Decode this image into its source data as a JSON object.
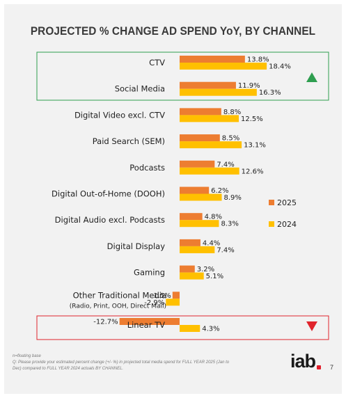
{
  "title": "PROJECTED % CHANGE AD SPEND YoY, BY CHANNEL",
  "footnote": {
    "line1": "n=floating base",
    "line2": "Q: Please provide your estimated percent change (+/- %) in projected total media spend for FULL YEAR 2025 (Jan to",
    "line3": "Dec) compared to FULL YEAR 2024 actuals BY CHANNEL."
  },
  "logo": "iab",
  "page_number": "7",
  "colors": {
    "series_2025": "#ed7d31",
    "series_2024": "#ffc000",
    "highlight_up": "#2e9e4f",
    "highlight_down": "#e0242c"
  },
  "highlights": {
    "up": {
      "icon": "up-triangle-icon",
      "categories": [
        "CTV",
        "Social Media"
      ]
    },
    "down": {
      "icon": "down-triangle-icon",
      "categories": [
        "Linear TV"
      ]
    }
  },
  "chart_data": {
    "type": "bar",
    "orientation": "horizontal",
    "title": "PROJECTED % CHANGE AD SPEND YoY, BY CHANNEL",
    "categories": [
      "CTV",
      "Social Media",
      "Digital Video excl. CTV",
      "Paid Search (SEM)",
      "Podcasts",
      "Digital Out-of-Home (DOOH)",
      "Digital Audio excl. Podcasts",
      "Digital Display",
      "Gaming",
      "Other Traditional Media",
      "Linear TV"
    ],
    "category_sublabels": {
      "Other Traditional Media": "(Radio, Print, OOH, Direct Mail)"
    },
    "series": [
      {
        "name": "2025",
        "values": [
          13.8,
          11.9,
          8.8,
          8.5,
          7.4,
          6.2,
          4.8,
          4.4,
          3.2,
          -1.5,
          -12.7
        ],
        "labels": [
          "13.8%",
          "11.9%",
          "8.8%",
          "8.5%",
          "7.4%",
          "6.2%",
          "4.8%",
          "4.4%",
          "3.2%",
          "-1.5%",
          "-12.7%"
        ]
      },
      {
        "name": "2024",
        "values": [
          18.4,
          16.3,
          12.5,
          13.1,
          12.6,
          8.9,
          8.3,
          7.4,
          5.1,
          -2.9,
          4.3
        ],
        "labels": [
          "18.4%",
          "16.3%",
          "12.5%",
          "13.1%",
          "12.6%",
          "8.9%",
          "8.3%",
          "7.4%",
          "5.1%",
          "-2.9%",
          "4.3%"
        ]
      }
    ],
    "legend": [
      "2025",
      "2024"
    ],
    "legend_position": "right",
    "grid": false
  }
}
